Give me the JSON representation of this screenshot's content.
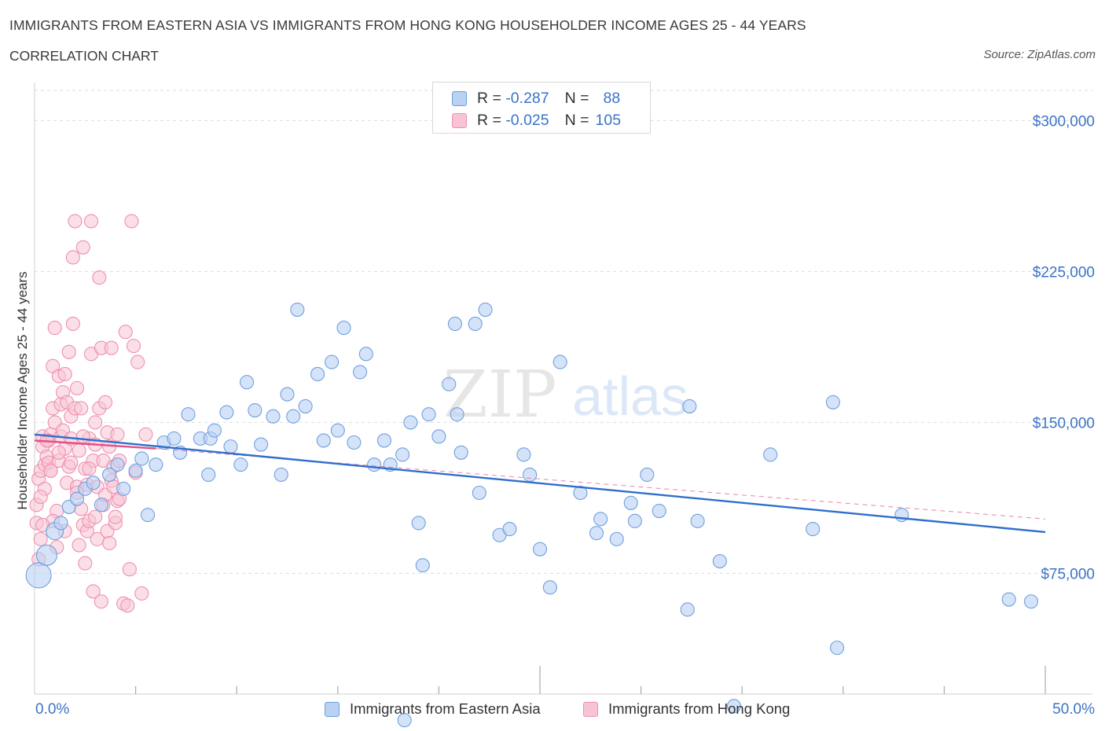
{
  "header": {
    "title": "IMMIGRANTS FROM EASTERN ASIA VS IMMIGRANTS FROM HONG KONG HOUSEHOLDER INCOME AGES 25 - 44 YEARS",
    "subtitle": "CORRELATION CHART",
    "source": "Source: ZipAtlas.com"
  },
  "watermark": {
    "zip": "ZIP",
    "atlas": "atlas"
  },
  "legend": {
    "r_label": "R =",
    "n_label": "N =",
    "rows": [
      {
        "r": "-0.287",
        "n": "88",
        "color": "#6fa0e0"
      },
      {
        "r": "-0.025",
        "n": "105",
        "color": "#ef8fb0"
      }
    ]
  },
  "colors": {
    "series_a_fill": "#b9d1f3",
    "series_a_stroke": "#6fa0e0",
    "series_a_trend": "#2f6fcc",
    "series_b_fill": "#f8c4d4",
    "series_b_stroke": "#ef8fb0",
    "series_b_trend": "#e0508a",
    "axis_label": "#3b73c6",
    "grid": "#dddddd"
  },
  "chart_data": {
    "type": "scatter",
    "title": "IMMIGRANTS FROM EASTERN ASIA VS IMMIGRANTS FROM HONG KONG HOUSEHOLDER INCOME AGES 25 - 44 YEARS",
    "xlabel": "",
    "ylabel": "Householder Income Ages 25 - 44 years",
    "xlim": [
      0,
      50
    ],
    "ylim": [
      15000,
      315000
    ],
    "x_tick_labels": [
      "0.0%",
      "50.0%"
    ],
    "y_ticks": [
      75000,
      150000,
      225000,
      300000
    ],
    "y_tick_labels": [
      "$75,000",
      "$150,000",
      "$225,000",
      "$300,000"
    ],
    "grid": "horizontal dashed",
    "legend_placement": "top-center",
    "series": [
      {
        "name": "Immigrants from Eastern Asia",
        "r": -0.287,
        "n": 88,
        "trend": {
          "x": [
            0,
            50
          ],
          "y": [
            144000,
            95500
          ]
        },
        "points": [
          [
            0.2,
            74000
          ],
          [
            0.6,
            84000
          ],
          [
            1.0,
            96000
          ],
          [
            1.3,
            100000
          ],
          [
            1.7,
            108000
          ],
          [
            2.1,
            112000
          ],
          [
            2.5,
            117000
          ],
          [
            2.9,
            120000
          ],
          [
            3.3,
            109000
          ],
          [
            3.7,
            124000
          ],
          [
            4.1,
            129000
          ],
          [
            4.4,
            117000
          ],
          [
            5.0,
            126000
          ],
          [
            5.3,
            132000
          ],
          [
            5.6,
            104000
          ],
          [
            6.0,
            129000
          ],
          [
            6.4,
            140000
          ],
          [
            6.9,
            142000
          ],
          [
            7.2,
            135000
          ],
          [
            7.6,
            154000
          ],
          [
            8.2,
            142000
          ],
          [
            8.7,
            142000
          ],
          [
            8.9,
            146000
          ],
          [
            9.5,
            155000
          ],
          [
            9.7,
            138000
          ],
          [
            10.2,
            129000
          ],
          [
            10.5,
            170000
          ],
          [
            10.9,
            156000
          ],
          [
            11.2,
            139000
          ],
          [
            11.8,
            153000
          ],
          [
            12.2,
            124000
          ],
          [
            12.5,
            164000
          ],
          [
            12.8,
            153000
          ],
          [
            13.0,
            206000
          ],
          [
            13.4,
            158000
          ],
          [
            14.0,
            174000
          ],
          [
            14.3,
            141000
          ],
          [
            14.7,
            180000
          ],
          [
            15.0,
            146000
          ],
          [
            15.3,
            197000
          ],
          [
            15.8,
            140000
          ],
          [
            16.1,
            175000
          ],
          [
            16.4,
            184000
          ],
          [
            16.8,
            129000
          ],
          [
            17.3,
            141000
          ],
          [
            17.6,
            129000
          ],
          [
            18.2,
            134000
          ],
          [
            18.6,
            150000
          ],
          [
            19.0,
            100000
          ],
          [
            19.2,
            79000
          ],
          [
            19.5,
            154000
          ],
          [
            20.0,
            143000
          ],
          [
            20.5,
            169000
          ],
          [
            20.8,
            199000
          ],
          [
            20.9,
            154000
          ],
          [
            21.1,
            135000
          ],
          [
            21.8,
            199000
          ],
          [
            22.3,
            206000
          ],
          [
            22.0,
            115000
          ],
          [
            23.0,
            94000
          ],
          [
            23.5,
            97000
          ],
          [
            24.2,
            134000
          ],
          [
            24.5,
            124000
          ],
          [
            25.0,
            87000
          ],
          [
            25.5,
            68000
          ],
          [
            26.0,
            180000
          ],
          [
            27.0,
            115000
          ],
          [
            27.8,
            95000
          ],
          [
            28.0,
            102000
          ],
          [
            28.8,
            92000
          ],
          [
            29.5,
            110000
          ],
          [
            29.7,
            101000
          ],
          [
            30.3,
            124000
          ],
          [
            30.9,
            106000
          ],
          [
            32.3,
            57000
          ],
          [
            32.4,
            158000
          ],
          [
            32.8,
            101000
          ],
          [
            33.9,
            81000
          ],
          [
            34.6,
            9000
          ],
          [
            36.4,
            134000
          ],
          [
            38.5,
            97000
          ],
          [
            39.5,
            160000
          ],
          [
            39.7,
            38000
          ],
          [
            42.9,
            104000
          ],
          [
            48.2,
            62000
          ],
          [
            49.3,
            61000
          ],
          [
            18.3,
            2000
          ],
          [
            8.6,
            124000
          ]
        ]
      },
      {
        "name": "Immigrants from Hong Kong",
        "r": -0.025,
        "n": 105,
        "trend": {
          "x": [
            0,
            6
          ],
          "y": [
            141000,
            137000
          ]
        },
        "trend_extended": {
          "x": [
            6,
            50
          ],
          "y": [
            137000,
            102000
          ]
        },
        "points": [
          [
            0.1,
            100000
          ],
          [
            0.1,
            109000
          ],
          [
            0.2,
            122000
          ],
          [
            0.2,
            82000
          ],
          [
            0.3,
            92000
          ],
          [
            0.3,
            126000
          ],
          [
            0.4,
            138000
          ],
          [
            0.4,
            143000
          ],
          [
            0.5,
            129000
          ],
          [
            0.5,
            117000
          ],
          [
            0.6,
            133000
          ],
          [
            0.7,
            130000
          ],
          [
            0.7,
            141000
          ],
          [
            0.8,
            144000
          ],
          [
            0.8,
            126000
          ],
          [
            0.9,
            178000
          ],
          [
            0.9,
            157000
          ],
          [
            1.0,
            150000
          ],
          [
            1.0,
            197000
          ],
          [
            1.1,
            88000
          ],
          [
            1.1,
            106000
          ],
          [
            1.2,
            131000
          ],
          [
            1.2,
            173000
          ],
          [
            1.3,
            143000
          ],
          [
            1.3,
            159000
          ],
          [
            1.4,
            146000
          ],
          [
            1.4,
            165000
          ],
          [
            1.5,
            137000
          ],
          [
            1.5,
            174000
          ],
          [
            1.6,
            160000
          ],
          [
            1.6,
            120000
          ],
          [
            1.7,
            185000
          ],
          [
            1.7,
            128000
          ],
          [
            1.8,
            142000
          ],
          [
            1.8,
            153000
          ],
          [
            1.9,
            232000
          ],
          [
            1.9,
            199000
          ],
          [
            2.0,
            250000
          ],
          [
            2.0,
            157000
          ],
          [
            2.1,
            167000
          ],
          [
            2.1,
            118000
          ],
          [
            2.2,
            89000
          ],
          [
            2.2,
            136000
          ],
          [
            2.3,
            107000
          ],
          [
            2.3,
            157000
          ],
          [
            2.4,
            237000
          ],
          [
            2.4,
            99000
          ],
          [
            2.5,
            80000
          ],
          [
            2.5,
            127000
          ],
          [
            2.6,
            96000
          ],
          [
            2.6,
            119000
          ],
          [
            2.7,
            101000
          ],
          [
            2.7,
            142000
          ],
          [
            2.8,
            250000
          ],
          [
            2.8,
            184000
          ],
          [
            2.9,
            131000
          ],
          [
            2.9,
            66000
          ],
          [
            3.0,
            103000
          ],
          [
            3.0,
            139000
          ],
          [
            3.1,
            118000
          ],
          [
            3.1,
            92000
          ],
          [
            3.2,
            222000
          ],
          [
            3.2,
            157000
          ],
          [
            3.3,
            187000
          ],
          [
            3.3,
            61000
          ],
          [
            3.4,
            131000
          ],
          [
            3.4,
            109000
          ],
          [
            3.5,
            160000
          ],
          [
            3.5,
            114000
          ],
          [
            3.6,
            145000
          ],
          [
            3.6,
            96000
          ],
          [
            3.7,
            90000
          ],
          [
            3.7,
            138000
          ],
          [
            3.8,
            121000
          ],
          [
            3.8,
            187000
          ],
          [
            3.9,
            118000
          ],
          [
            3.9,
            128000
          ],
          [
            4.0,
            100000
          ],
          [
            4.0,
            103000
          ],
          [
            4.1,
            111000
          ],
          [
            4.1,
            144000
          ],
          [
            4.2,
            112000
          ],
          [
            4.2,
            131000
          ],
          [
            4.4,
            60000
          ],
          [
            4.5,
            195000
          ],
          [
            4.6,
            59000
          ],
          [
            4.7,
            77000
          ],
          [
            4.8,
            250000
          ],
          [
            4.9,
            188000
          ],
          [
            5.0,
            125000
          ],
          [
            5.1,
            180000
          ],
          [
            5.3,
            65000
          ],
          [
            5.5,
            144000
          ],
          [
            0.3,
            113000
          ],
          [
            0.6,
            141000
          ],
          [
            0.9,
            101000
          ],
          [
            1.2,
            135000
          ],
          [
            1.5,
            96000
          ],
          [
            1.8,
            130000
          ],
          [
            2.1,
            115000
          ],
          [
            2.4,
            143000
          ],
          [
            2.7,
            127000
          ],
          [
            3.0,
            150000
          ],
          [
            0.4,
            99000
          ],
          [
            0.8,
            126000
          ]
        ]
      }
    ]
  },
  "bottom_legend": [
    {
      "label": "Immigrants from Eastern Asia"
    },
    {
      "label": "Immigrants from Hong Kong"
    }
  ]
}
